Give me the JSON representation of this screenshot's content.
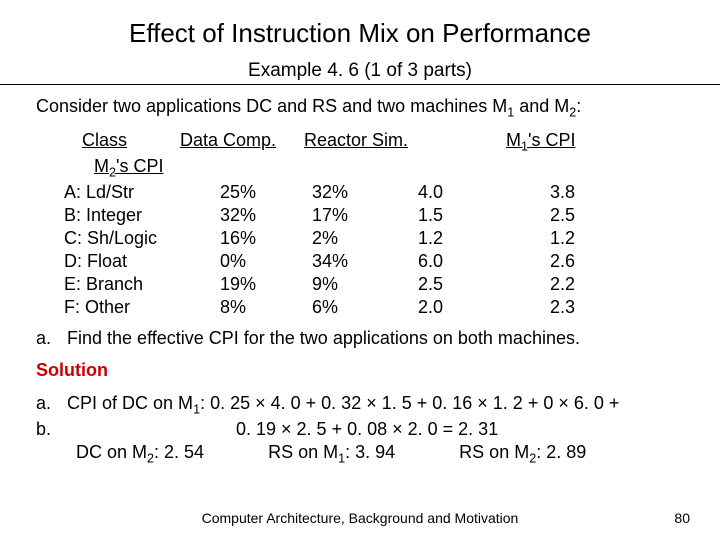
{
  "title": "Effect of Instruction Mix on Performance",
  "subtitle": "Example 4. 6 (1 of 3 parts)",
  "intro_pre": "Consider two applications DC and RS and two machines M",
  "intro_mid": " and M",
  "intro_post": ":",
  "headers": {
    "class": "Class",
    "dc": "Data Comp.",
    "rs": "Reactor Sim.",
    "m1_pre": "M",
    "m1_post": "'s CPI",
    "m2_pre": "M",
    "m2_post": "'s CPI"
  },
  "rows": [
    {
      "class": "A: Ld/Str",
      "dc": "25%",
      "rs": "32%",
      "m1": "4.0",
      "m2": "3.8"
    },
    {
      "class": "B: Integer",
      "dc": "32%",
      "rs": "17%",
      "m1": "1.5",
      "m2": "2.5"
    },
    {
      "class": "C: Sh/Logic",
      "dc": "16%",
      "rs": "  2%",
      "m1": "1.2",
      "m2": "1.2"
    },
    {
      "class": "D: Float",
      "dc": "  0%",
      "rs": "34%",
      "m1": "6.0",
      "m2": "2.6"
    },
    {
      "class": "E: Branch",
      "dc": "19%",
      "rs": "  9%",
      "m1": "2.5",
      "m2": "2.2"
    },
    {
      "class": "F: Other",
      "dc": "  8%",
      "rs": "  6%",
      "m1": "2.0",
      "m2": "2.3"
    }
  ],
  "question_label": "a.",
  "question": "Find the effective CPI for the two applications on both machines.",
  "solution_label": "Solution",
  "answer": {
    "a_label": "a.",
    "b_label": "b.",
    "line1_pre": "CPI of DC on M",
    "line1_post": ": 0. 25 × 4. 0 + 0. 32 × 1. 5 + 0. 16 × 1. 2 + 0 × 6. 0 +",
    "line2": "0. 19 × 2. 5 + 0. 08 × 2. 0 = 2. 31",
    "dc_m2_pre": "DC on M",
    "dc_m2_val": ": 2. 54",
    "rs_m1_pre": "RS on M",
    "rs_m1_val": ": 3. 94",
    "rs_m2_pre": "RS on M",
    "rs_m2_val": ": 2. 89"
  },
  "footer": "Computer Architecture, Background and Motivation",
  "page": "80",
  "colors": {
    "accent": "#cc0000",
    "text": "#000000",
    "bg": "#ffffff"
  }
}
